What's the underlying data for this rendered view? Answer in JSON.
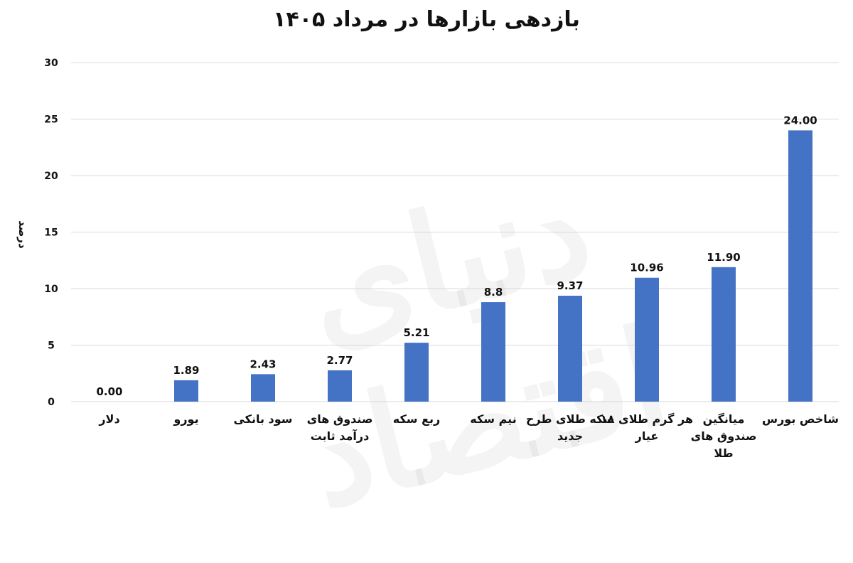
{
  "chart_data": {
    "type": "bar",
    "title": "بازدهی بازارها در مرداد ۱۴۰۵",
    "ylabel": "درصد",
    "xlabel": "",
    "ylim": [
      0,
      30
    ],
    "y_ticks": [
      {
        "value": 0,
        "label": "0"
      },
      {
        "value": 5,
        "label": "5"
      },
      {
        "value": 10,
        "label": "10"
      },
      {
        "value": 15,
        "label": "15"
      },
      {
        "value": 20,
        "label": "20"
      },
      {
        "value": 25,
        "label": "25"
      },
      {
        "value": 30,
        "label": "30"
      }
    ],
    "grid": true,
    "bar_color": "#4472c4",
    "categories": [
      [
        "دلار"
      ],
      [
        "یورو"
      ],
      [
        "سود بانکی"
      ],
      [
        "صندوق های",
        "درآمد ثابت"
      ],
      [
        "ربع سکه"
      ],
      [
        "نیم سکه"
      ],
      [
        "سکه طلای طرح",
        "جدید"
      ],
      [
        "هر گرم طلای ۱۸",
        "عیار"
      ],
      [
        "میانگین",
        "صندوق های",
        "طلا"
      ],
      [
        "شاخص بورس"
      ]
    ],
    "values": [
      0.0,
      1.89,
      2.43,
      2.77,
      5.21,
      8.8,
      9.37,
      10.96,
      11.9,
      24.0
    ],
    "data_labels": [
      "0.00",
      "1.89",
      "2.43",
      "2.77",
      "5.21",
      "8.8",
      "9.37",
      "10.96",
      "11.90",
      "24.00"
    ]
  },
  "watermark": "دنیای اقتصاد"
}
